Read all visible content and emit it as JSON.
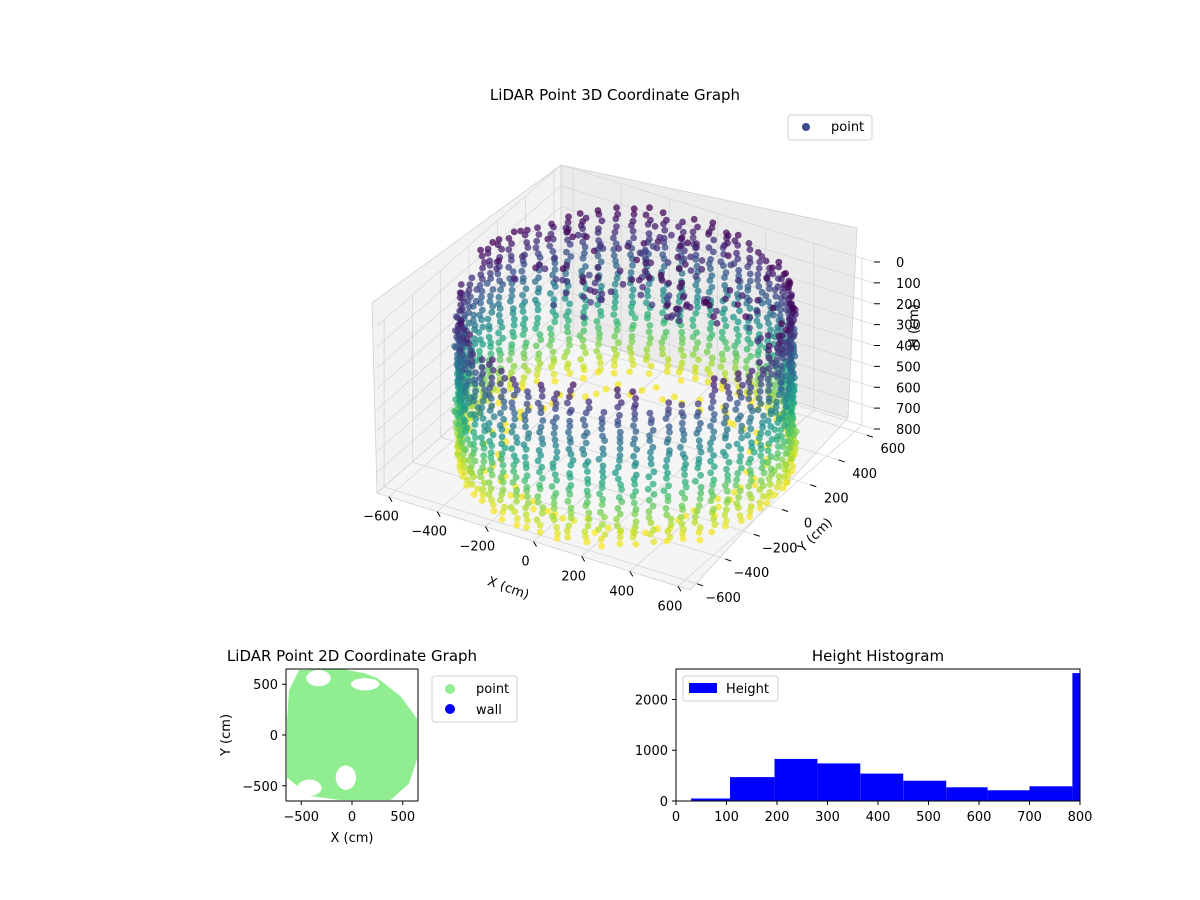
{
  "chart_data": [
    {
      "type": "scatter",
      "projection": "3d",
      "title": "LiDAR Point 3D Coordinate Graph",
      "xlabel": "X (cm)",
      "ylabel": "Y (cm)",
      "zlabel": "H (cm)",
      "xlim": [
        -650,
        650
      ],
      "ylim": [
        -650,
        650
      ],
      "zlim": [
        800,
        0
      ],
      "x_ticks": [
        "−600",
        "−400",
        "−200",
        "0",
        "200",
        "400",
        "600"
      ],
      "y_ticks": [
        "−600",
        "−400",
        "−200",
        "0",
        "200",
        "400",
        "600"
      ],
      "z_ticks": [
        "0",
        "100",
        "200",
        "300",
        "400",
        "500",
        "600",
        "700",
        "800"
      ],
      "grid": true,
      "colormap": "viridis (by height)",
      "legend": {
        "position": "top-right",
        "entries": [
          {
            "label": "point",
            "color": "#3b4a8c"
          }
        ]
      },
      "series": [
        {
          "name": "point",
          "description": "cylindrical wall of points around a room, radius ~600 cm, height 0-800 cm"
        }
      ]
    },
    {
      "type": "scatter",
      "title": "LiDAR Point 2D Coordinate Graph",
      "xlabel": "X (cm)",
      "ylabel": "Y (cm)",
      "xlim": [
        -650,
        650
      ],
      "ylim": [
        -650,
        650
      ],
      "x_ticks": [
        "−500",
        "0",
        "500"
      ],
      "y_ticks": [
        "500",
        "0",
        "−500"
      ],
      "legend": {
        "position": "outside-right",
        "entries": [
          {
            "label": "point",
            "color": "#90ee90"
          },
          {
            "label": "wall",
            "color": "#0000ff"
          }
        ]
      },
      "series": [
        {
          "name": "point",
          "color": "#90ee90"
        },
        {
          "name": "wall",
          "color": "#0000ff"
        }
      ]
    },
    {
      "type": "bar",
      "subtype": "histogram",
      "title": "Height Histogram",
      "xlabel": "",
      "ylabel": "",
      "xlim": [
        0,
        800
      ],
      "ylim": [
        0,
        2600
      ],
      "x_ticks": [
        "0",
        "100",
        "200",
        "300",
        "400",
        "500",
        "600",
        "700",
        "800"
      ],
      "y_ticks": [
        "0",
        "1000",
        "2000"
      ],
      "legend": {
        "position": "top-left",
        "entries": [
          {
            "label": "Height",
            "color": "#0000ff"
          }
        ]
      },
      "bins": [
        {
          "x0": 30,
          "x1": 107,
          "count": 50
        },
        {
          "x0": 107,
          "x1": 195,
          "count": 470
        },
        {
          "x0": 195,
          "x1": 280,
          "count": 830
        },
        {
          "x0": 280,
          "x1": 365,
          "count": 740
        },
        {
          "x0": 365,
          "x1": 450,
          "count": 540
        },
        {
          "x0": 450,
          "x1": 535,
          "count": 400
        },
        {
          "x0": 535,
          "x1": 617,
          "count": 270
        },
        {
          "x0": 617,
          "x1": 700,
          "count": 210
        },
        {
          "x0": 700,
          "x1": 785,
          "count": 290
        },
        {
          "x0": 785,
          "x1": 800,
          "count": 2520
        }
      ],
      "color": "#0000ff"
    }
  ]
}
